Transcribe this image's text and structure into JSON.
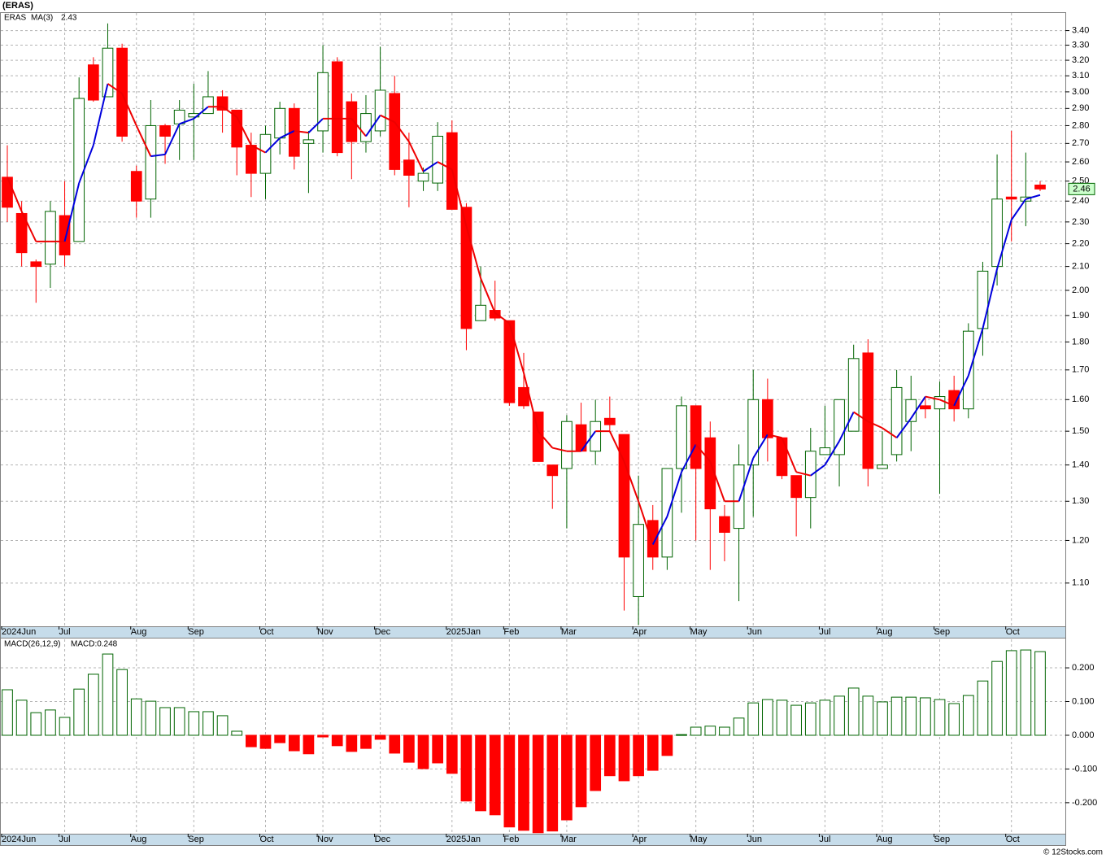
{
  "chart_data": [
    {
      "type": "candlestick",
      "title": "(ERAS)",
      "categories": [
        "2024Jun",
        null,
        null,
        null,
        "Jul",
        null,
        null,
        null,
        null,
        "Aug",
        null,
        null,
        null,
        "Sep",
        null,
        null,
        null,
        null,
        "Oct",
        null,
        null,
        null,
        "Nov",
        null,
        null,
        null,
        "Dec",
        null,
        null,
        null,
        null,
        "2025Jan",
        null,
        null,
        null,
        "Feb",
        null,
        null,
        null,
        "Mar",
        null,
        null,
        null,
        null,
        "Apr",
        null,
        null,
        null,
        "May",
        null,
        null,
        null,
        "Jun",
        null,
        null,
        null,
        null,
        "Jul",
        null,
        null,
        null,
        "Aug",
        null,
        null,
        null,
        "Sep",
        null,
        null,
        null,
        null,
        "Oct",
        null,
        null
      ],
      "series": [
        {
          "name": "ERAS",
          "color": "#008000",
          "up_color": "#006400",
          "down_color": "#ff0000",
          "open": [
            2.52,
            2.34,
            2.12,
            2.11,
            2.33,
            2.21,
            3.17,
            2.97,
            3.28,
            2.55,
            2.41,
            2.8,
            2.81,
            2.85,
            2.87,
            2.97,
            2.89,
            2.69,
            2.54,
            2.73,
            2.9,
            2.7,
            2.77,
            3.19,
            2.94,
            2.71,
            2.77,
            2.99,
            2.61,
            2.5,
            2.49,
            2.76,
            2.37,
            1.88,
            1.92,
            1.88,
            1.64,
            1.56,
            1.4,
            1.39,
            1.52,
            1.44,
            1.54,
            1.49,
            1.07,
            1.25,
            1.16,
            1.39,
            1.58,
            1.48,
            1.26,
            1.23,
            1.4,
            1.6,
            1.48,
            1.37,
            1.31,
            1.43,
            1.43,
            1.5,
            1.76,
            1.39,
            1.43,
            1.53,
            1.58,
            1.57,
            1.63,
            1.57,
            1.85,
            2.1,
            2.42,
            2.4,
            2.48
          ],
          "high": [
            2.69,
            2.4,
            2.13,
            2.4,
            2.5,
            3.09,
            3.22,
            3.45,
            3.31,
            2.58,
            2.95,
            2.81,
            2.95,
            3.05,
            3.13,
            3.01,
            2.89,
            2.76,
            2.8,
            2.94,
            2.93,
            2.77,
            3.3,
            3.22,
            2.99,
            2.98,
            3.29,
            3.1,
            2.76,
            2.57,
            2.82,
            2.83,
            2.39,
            2.1,
            2.04,
            1.88,
            1.76,
            1.56,
            1.4,
            1.55,
            1.59,
            1.6,
            1.61,
            1.49,
            1.37,
            1.29,
            1.39,
            1.61,
            1.58,
            1.53,
            1.29,
            1.46,
            1.7,
            1.67,
            1.48,
            1.37,
            1.51,
            1.58,
            1.6,
            1.79,
            1.81,
            1.5,
            1.7,
            1.68,
            1.61,
            1.66,
            1.68,
            1.87,
            2.12,
            2.64,
            2.77,
            2.65,
            2.5
          ],
          "low": [
            2.3,
            2.1,
            1.95,
            2.01,
            2.1,
            2.21,
            2.94,
            2.97,
            2.71,
            2.32,
            2.32,
            2.59,
            2.61,
            2.61,
            2.87,
            2.76,
            2.53,
            2.42,
            2.41,
            2.64,
            2.56,
            2.44,
            2.65,
            2.63,
            2.51,
            2.65,
            2.74,
            2.53,
            2.37,
            2.45,
            2.45,
            2.36,
            1.77,
            1.88,
            1.88,
            1.58,
            1.57,
            1.41,
            1.28,
            1.23,
            1.44,
            1.4,
            1.5,
            1.04,
            1.01,
            1.13,
            1.13,
            1.27,
            1.2,
            1.13,
            1.15,
            1.06,
            1.26,
            1.41,
            1.36,
            1.21,
            1.23,
            1.43,
            1.34,
            1.5,
            1.34,
            1.39,
            1.41,
            1.44,
            1.54,
            1.32,
            1.53,
            1.54,
            1.75,
            2.02,
            2.21,
            2.28,
            2.45
          ],
          "close": [
            2.37,
            2.16,
            2.1,
            2.35,
            2.15,
            2.96,
            2.95,
            3.28,
            2.74,
            2.4,
            2.8,
            2.74,
            2.89,
            2.87,
            2.97,
            2.89,
            2.68,
            2.54,
            2.75,
            2.9,
            2.63,
            2.72,
            3.12,
            2.65,
            2.71,
            2.87,
            3.01,
            2.56,
            2.53,
            2.54,
            2.74,
            2.36,
            1.85,
            1.94,
            1.89,
            1.59,
            1.58,
            1.41,
            1.37,
            1.53,
            1.44,
            1.53,
            1.52,
            1.16,
            1.24,
            1.16,
            1.39,
            1.58,
            1.39,
            1.28,
            1.22,
            1.4,
            1.6,
            1.48,
            1.37,
            1.31,
            1.44,
            1.45,
            1.6,
            1.74,
            1.39,
            1.4,
            1.64,
            1.6,
            1.57,
            1.61,
            1.57,
            1.84,
            2.08,
            2.41,
            2.41,
            2.42,
            2.46
          ]
        },
        {
          "name": "MA(3)",
          "type": "line",
          "color": "#0000dd",
          "down_color": "#ee0000",
          "values": [
            2.52,
            2.35,
            2.21,
            2.21,
            2.21,
            2.49,
            2.69,
            3.05,
            2.99,
            2.8,
            2.63,
            2.64,
            2.81,
            2.84,
            2.91,
            2.91,
            2.85,
            2.69,
            2.65,
            2.73,
            2.77,
            2.76,
            2.84,
            2.84,
            2.84,
            2.74,
            2.86,
            2.82,
            2.71,
            2.55,
            2.6,
            2.56,
            2.28,
            2.05,
            1.91,
            1.87,
            1.69,
            1.5,
            1.45,
            1.44,
            1.44,
            1.5,
            1.5,
            1.41,
            1.3,
            1.19,
            1.26,
            1.38,
            1.46,
            1.41,
            1.3,
            1.3,
            1.42,
            1.49,
            1.48,
            1.38,
            1.37,
            1.4,
            1.47,
            1.56,
            1.53,
            1.51,
            1.48,
            1.54,
            1.61,
            1.6,
            1.58,
            1.68,
            1.85,
            2.09,
            2.31,
            2.41,
            2.43
          ]
        }
      ],
      "log_scale": true,
      "ylim": [
        1.007,
        3.53
      ],
      "yticks": [
        {
          "value": 1.1,
          "label": "1.10"
        },
        {
          "value": 1.2,
          "label": "1.20"
        },
        {
          "value": 1.3,
          "label": "1.30"
        },
        {
          "value": 1.4,
          "label": "1.40"
        },
        {
          "value": 1.5,
          "label": "1.50"
        },
        {
          "value": 1.6,
          "label": "1.60"
        },
        {
          "value": 1.7,
          "label": "1.70"
        },
        {
          "value": 1.8,
          "label": "1.80"
        },
        {
          "value": 1.9,
          "label": "1.90"
        },
        {
          "value": 2.0,
          "label": "2.00"
        },
        {
          "value": 2.1,
          "label": "2.10"
        },
        {
          "value": 2.2,
          "label": "2.20"
        },
        {
          "value": 2.3,
          "label": "2.30"
        },
        {
          "value": 2.4,
          "label": "2.40"
        },
        {
          "value": 2.5,
          "label": "2.50"
        },
        {
          "value": 2.6,
          "label": "2.60"
        },
        {
          "value": 2.7,
          "label": "2.70"
        },
        {
          "value": 2.8,
          "label": "2.80"
        },
        {
          "value": 2.9,
          "label": "2.90"
        },
        {
          "value": 3.0,
          "label": "3.00"
        },
        {
          "value": 3.1,
          "label": "3.10"
        },
        {
          "value": 3.2,
          "label": "3.20"
        },
        {
          "value": 3.3,
          "label": "3.30"
        },
        {
          "value": 3.4,
          "label": "3.40"
        }
      ],
      "grid": true
    },
    {
      "type": "bar",
      "title": "MACD(26,12,9)",
      "legend_label": "MACD:0.248",
      "categories": [
        "2024Jun",
        null,
        null,
        null,
        "Jul",
        null,
        null,
        null,
        null,
        "Aug",
        null,
        null,
        null,
        "Sep",
        null,
        null,
        null,
        null,
        "Oct",
        null,
        null,
        null,
        "Nov",
        null,
        null,
        null,
        "Dec",
        null,
        null,
        null,
        null,
        "2025Jan",
        null,
        null,
        null,
        "Feb",
        null,
        null,
        null,
        "Mar",
        null,
        null,
        null,
        null,
        "Apr",
        null,
        null,
        null,
        "May",
        null,
        null,
        null,
        "Jun",
        null,
        null,
        null,
        null,
        "Jul",
        null,
        null,
        null,
        "Aug",
        null,
        null,
        null,
        "Sep",
        null,
        null,
        null,
        null,
        "Oct",
        null,
        null
      ],
      "values": [
        0.135,
        0.104,
        0.067,
        0.075,
        0.053,
        0.137,
        0.181,
        0.241,
        0.195,
        0.108,
        0.101,
        0.082,
        0.082,
        0.07,
        0.07,
        0.058,
        0.012,
        -0.034,
        -0.039,
        -0.022,
        -0.046,
        -0.055,
        -0.005,
        -0.031,
        -0.048,
        -0.039,
        -0.012,
        -0.053,
        -0.08,
        -0.099,
        -0.082,
        -0.113,
        -0.195,
        -0.224,
        -0.236,
        -0.272,
        -0.282,
        -0.289,
        -0.284,
        -0.251,
        -0.212,
        -0.164,
        -0.12,
        -0.135,
        -0.12,
        -0.104,
        -0.06,
        0.002,
        0.024,
        0.027,
        0.024,
        0.051,
        0.096,
        0.106,
        0.104,
        0.089,
        0.096,
        0.104,
        0.116,
        0.14,
        0.116,
        0.099,
        0.113,
        0.113,
        0.111,
        0.106,
        0.094,
        0.118,
        0.161,
        0.219,
        0.251,
        0.253,
        0.248
      ],
      "up_color": "#006400",
      "down_color": "#ff0000",
      "title_color": "#000000",
      "label_color": "#0000dd",
      "ylim": [
        -0.292,
        0.287
      ],
      "yticks": [
        {
          "value": -0.2,
          "label": "-0.200"
        },
        {
          "value": -0.1,
          "label": "-0.100"
        },
        {
          "value": 0,
          "label": "0.000"
        },
        {
          "value": 0.1,
          "label": "0.100"
        },
        {
          "value": 0.2,
          "label": "0.200"
        }
      ],
      "grid": true
    }
  ],
  "footer": "© 12Stocks.com"
}
